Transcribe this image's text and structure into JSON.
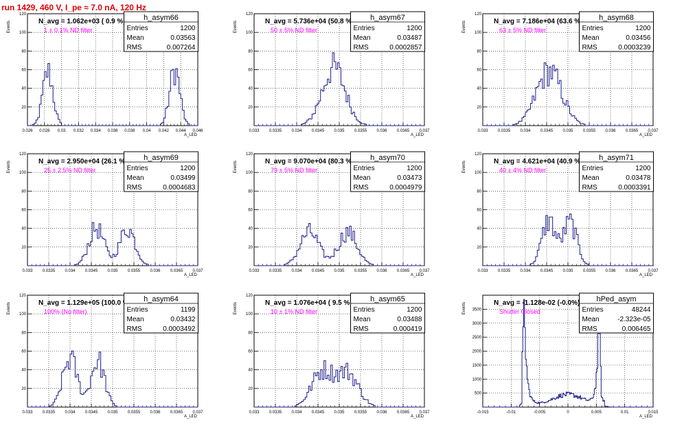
{
  "title": "run 1429,   460 V, I_pe ≈ 7.0 nA, 120 Hz",
  "colors": {
    "hist": "#1a1a8c",
    "annotation": "#ff00ff",
    "title": "#e00000"
  },
  "chart_data": [
    {
      "type": "histogram",
      "name": "h_asym66",
      "ylabel": "Events",
      "xlabel": "A_LED",
      "xlim": [
        0.026,
        0.046
      ],
      "ylim": [
        0,
        120
      ],
      "xticks": [
        "0.026",
        "0.028",
        "0.03",
        "0.032",
        "0.034",
        "0.036",
        "0.038",
        "0.04",
        "0.042",
        "0.044",
        "0.046"
      ],
      "xtick_values": [
        0.026,
        0.028,
        0.03,
        0.032,
        0.034,
        0.036,
        0.038,
        0.04,
        0.042,
        0.044,
        0.046
      ],
      "yticks": [
        "20",
        "40",
        "60",
        "80",
        "100",
        "120"
      ],
      "ytick_values": [
        20,
        40,
        60,
        80,
        100,
        120
      ],
      "navg": "N_avg = 1.062e+03 ( 0.9 %)",
      "filter": "1 ± 0.1% ND filter",
      "stats": {
        "Entries": "1200",
        "Mean": "0.03563",
        "RMS": "0.007264"
      },
      "peaks": [
        {
          "mu": 0.0284,
          "sigma": 0.0006,
          "height": 58
        },
        {
          "mu": 0.0433,
          "sigma": 0.0006,
          "height": 60
        }
      ],
      "bins": 100
    },
    {
      "type": "histogram",
      "name": "h_asym67",
      "ylabel": "Events",
      "xlabel": "A_LED",
      "xlim": [
        0.033,
        0.037
      ],
      "ylim": [
        0,
        120
      ],
      "xticks": [
        "0.033",
        "0.0335",
        "0.034",
        "0.0345",
        "0.035",
        "0.0355",
        "0.036",
        "0.0365",
        "0.037"
      ],
      "xtick_values": [
        0.033,
        0.0335,
        0.034,
        0.0345,
        0.035,
        0.0355,
        0.036,
        0.0365,
        0.037
      ],
      "yticks": [
        "20",
        "40",
        "60",
        "80",
        "100",
        "120"
      ],
      "ytick_values": [
        20,
        40,
        60,
        80,
        100,
        120
      ],
      "navg": "N_avg = 5.736e+04 (50.8 %)",
      "filter": "50 ± 5% ND filter",
      "stats": {
        "Entries": "1200",
        "Mean": "0.03487",
        "RMS": "0.0002857"
      },
      "peaks": [
        {
          "mu": 0.03487,
          "sigma": 0.00027,
          "height": 62
        }
      ],
      "bins": 100
    },
    {
      "type": "histogram",
      "name": "h_asym68",
      "ylabel": "Events",
      "xlabel": "A_LED",
      "xlim": [
        0.033,
        0.037
      ],
      "ylim": [
        0,
        120
      ],
      "xticks": [
        "0.033",
        "0.0335",
        "0.034",
        "0.0345",
        "0.035",
        "0.0355",
        "0.036",
        "0.0365",
        "0.037"
      ],
      "xtick_values": [
        0.033,
        0.0335,
        0.034,
        0.0345,
        0.035,
        0.0355,
        0.036,
        0.0365,
        0.037
      ],
      "yticks": [
        "20",
        "40",
        "60",
        "80",
        "100",
        "120"
      ],
      "ytick_values": [
        20,
        40,
        60,
        80,
        100,
        120
      ],
      "navg": "N_avg = 7.186e+04 (63.6 %)",
      "filter": "63 ± 5% ND filter",
      "stats": {
        "Entries": "1200",
        "Mean": "0.03456",
        "RMS": "0.0003239"
      },
      "peaks": [
        {
          "mu": 0.03456,
          "sigma": 0.0003,
          "height": 58
        }
      ],
      "bins": 100
    },
    {
      "type": "histogram",
      "name": "h_asym69",
      "ylabel": "Events",
      "xlabel": "A_LED",
      "xlim": [
        0.033,
        0.037
      ],
      "ylim": [
        0,
        120
      ],
      "xticks": [
        "0.033",
        "0.0335",
        "0.034",
        "0.0345",
        "0.035",
        "0.0355",
        "0.036",
        "0.0365",
        "0.037"
      ],
      "xtick_values": [
        0.033,
        0.0335,
        0.034,
        0.0345,
        0.035,
        0.0355,
        0.036,
        0.0365,
        0.037
      ],
      "yticks": [
        "20",
        "40",
        "60",
        "80",
        "100",
        "120"
      ],
      "ytick_values": [
        20,
        40,
        60,
        80,
        100,
        120
      ],
      "navg": "N_avg = 2.950e+04 (26.1 %)",
      "filter": "25 ± 2.5% ND filter",
      "stats": {
        "Entries": "1200",
        "Mean": "0.03499",
        "RMS": "0.0004683"
      },
      "peaks": [
        {
          "mu": 0.03462,
          "sigma": 0.00018,
          "height": 40
        },
        {
          "mu": 0.03535,
          "sigma": 0.00018,
          "height": 40
        }
      ],
      "bins": 100
    },
    {
      "type": "histogram",
      "name": "h_asym70",
      "ylabel": "Events",
      "xlabel": "A_LED",
      "xlim": [
        0.033,
        0.037
      ],
      "ylim": [
        0,
        120
      ],
      "xticks": [
        "0.033",
        "0.0335",
        "0.034",
        "0.0345",
        "0.035",
        "0.0355",
        "0.036",
        "0.0365",
        "0.037"
      ],
      "xtick_values": [
        0.033,
        0.0335,
        0.034,
        0.0345,
        0.035,
        0.0355,
        0.036,
        0.0365,
        0.037
      ],
      "yticks": [
        "20",
        "40",
        "60",
        "80",
        "100",
        "120"
      ],
      "ytick_values": [
        20,
        40,
        60,
        80,
        100,
        120
      ],
      "navg": "N_avg = 9.070e+04 (80.3 %)",
      "filter": "79 ± 5% ND filter",
      "stats": {
        "Entries": "1200",
        "Mean": "0.03473",
        "RMS": "0.0004979"
      },
      "peaks": [
        {
          "mu": 0.0343,
          "sigma": 0.00022,
          "height": 36
        },
        {
          "mu": 0.0352,
          "sigma": 0.00022,
          "height": 36
        }
      ],
      "bins": 100
    },
    {
      "type": "histogram",
      "name": "h_asym71",
      "ylabel": "Events",
      "xlabel": "A_LED",
      "xlim": [
        0.033,
        0.037
      ],
      "ylim": [
        0,
        120
      ],
      "xticks": [
        "0.033",
        "0.0335",
        "0.034",
        "0.0345",
        "0.035",
        "0.0355",
        "0.036",
        "0.0365",
        "0.037"
      ],
      "xtick_values": [
        0.033,
        0.0335,
        0.034,
        0.0345,
        0.035,
        0.0355,
        0.036,
        0.0365,
        0.037
      ],
      "yticks": [
        "20",
        "40",
        "60",
        "80",
        "100",
        "120"
      ],
      "ytick_values": [
        20,
        40,
        60,
        80,
        100,
        120
      ],
      "navg": "N_avg = 4.621e+04 (40.9 %)",
      "filter": "40 ± 4% ND filter",
      "stats": {
        "Entries": "1200",
        "Mean": "0.03478",
        "RMS": "0.0003391"
      },
      "peaks": [
        {
          "mu": 0.03455,
          "sigma": 0.00016,
          "height": 48
        },
        {
          "mu": 0.03505,
          "sigma": 0.00016,
          "height": 46
        }
      ],
      "bins": 100
    },
    {
      "type": "histogram",
      "name": "h_asym64",
      "ylabel": "Events",
      "xlabel": "A_LED",
      "xlim": [
        0.033,
        0.037
      ],
      "ylim": [
        0,
        120
      ],
      "xticks": [
        "0.033",
        "0.0335",
        "0.034",
        "0.0345",
        "0.035",
        "0.0355",
        "0.036",
        "0.0365",
        "0.037"
      ],
      "xtick_values": [
        0.033,
        0.0335,
        0.034,
        0.0345,
        0.035,
        0.0355,
        0.036,
        0.0365,
        0.037
      ],
      "yticks": [
        "20",
        "40",
        "60",
        "80",
        "100",
        "120"
      ],
      "ytick_values": [
        20,
        40,
        60,
        80,
        100,
        120
      ],
      "navg": "N_avg = 1.129e+05 (100.0 %)",
      "filter": "100% (No filter)",
      "stats": {
        "Entries": "1199",
        "Mean": "0.03432",
        "RMS": "0.0003492"
      },
      "peaks": [
        {
          "mu": 0.034,
          "sigma": 0.00017,
          "height": 52
        },
        {
          "mu": 0.03465,
          "sigma": 0.00016,
          "height": 50
        }
      ],
      "bins": 100
    },
    {
      "type": "histogram",
      "name": "h_asym65",
      "ylabel": "Events",
      "xlabel": "A_LED",
      "xlim": [
        0.033,
        0.037
      ],
      "ylim": [
        0,
        120
      ],
      "xticks": [
        "0.033",
        "0.0335",
        "0.034",
        "0.0345",
        "0.035",
        "0.0355",
        "0.036",
        "0.0365",
        "0.037"
      ],
      "xtick_values": [
        0.033,
        0.0335,
        0.034,
        0.0345,
        0.035,
        0.0355,
        0.036,
        0.0365,
        0.037
      ],
      "yticks": [
        "20",
        "40",
        "60",
        "80",
        "100",
        "120"
      ],
      "ytick_values": [
        20,
        40,
        60,
        80,
        100,
        120
      ],
      "navg": "N_avg = 1.076e+04 ( 9.5 %)",
      "filter": "10 ± 1% ND filter",
      "stats": {
        "Entries": "1200",
        "Mean": "0.03488",
        "RMS": "0.000419"
      },
      "peaks": [
        {
          "mu": 0.0346,
          "sigma": 0.00025,
          "height": 38
        },
        {
          "mu": 0.0352,
          "sigma": 0.00025,
          "height": 36
        }
      ],
      "bins": 100
    },
    {
      "type": "histogram",
      "name": "hPed_asym",
      "ylabel": "Events",
      "xlabel": "A_LED",
      "xlim": [
        -0.015,
        0.015
      ],
      "ylim": [
        0,
        4000
      ],
      "xticks": [
        "-0.015",
        "-0.01",
        "-0.005",
        "0",
        "0.005",
        "0.01",
        "0.015"
      ],
      "xtick_values": [
        -0.015,
        -0.01,
        -0.005,
        0,
        0.005,
        0.01,
        0.015
      ],
      "yticks": [
        "500",
        "1000",
        "1500",
        "2000",
        "2500",
        "3000",
        "3500"
      ],
      "ytick_values": [
        500,
        1000,
        1500,
        2000,
        2500,
        3000,
        3500
      ],
      "navg": "N_avg = -1.128e-02 (-0.0%)",
      "filter": "Shutter Closed",
      "stats": {
        "Entries": "48244",
        "Mean": "-2.323e-05",
        "RMS": "0.006465"
      },
      "pedestal": true,
      "bins": 200
    }
  ]
}
